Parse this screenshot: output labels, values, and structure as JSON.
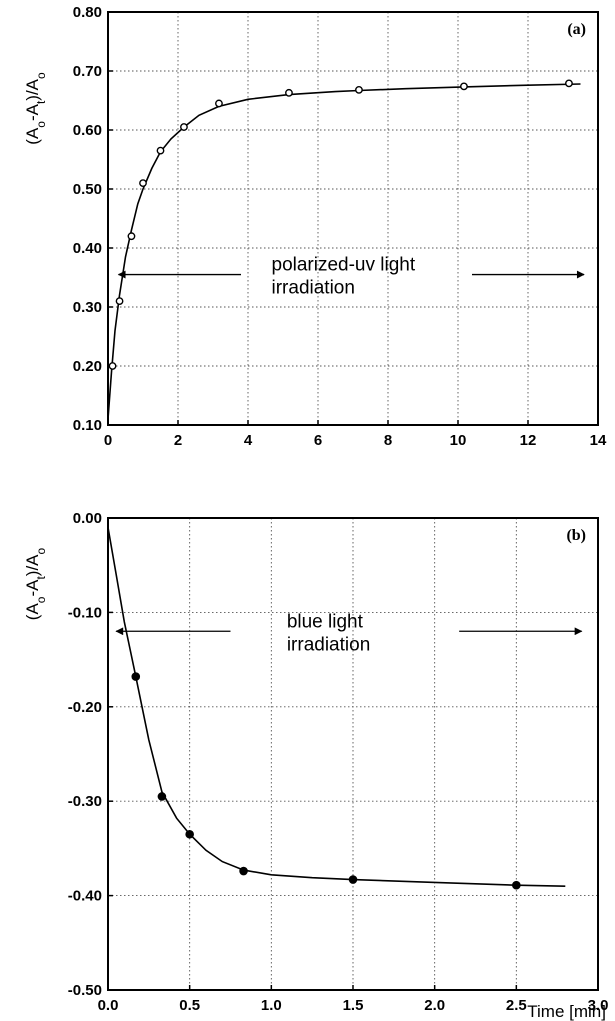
{
  "chart_data": [
    {
      "type": "scatter",
      "panel_label": "(a)",
      "ylabel": "(A0-At)/A0",
      "xlabel": "",
      "xlim": [
        0,
        14
      ],
      "ylim": [
        0.1,
        0.8
      ],
      "x_ticks": [
        "0",
        "2",
        "4",
        "6",
        "8",
        "10",
        "12",
        "14"
      ],
      "y_ticks": [
        "0.10",
        "0.20",
        "0.30",
        "0.40",
        "0.50",
        "0.60",
        "0.70",
        "0.80"
      ],
      "grid": true,
      "marker": "open-circle",
      "series": [
        {
          "x": [
            0.13,
            0.33,
            0.67,
            1.0,
            1.5,
            2.17,
            3.17,
            5.17,
            7.17,
            10.17,
            13.17
          ],
          "y": [
            0.2,
            0.31,
            0.42,
            0.51,
            0.565,
            0.605,
            0.645,
            0.663,
            0.668,
            0.674,
            0.679
          ]
        }
      ],
      "fit_curve": {
        "x": [
          0,
          0.1,
          0.2,
          0.33,
          0.5,
          0.67,
          0.85,
          1.0,
          1.25,
          1.5,
          1.8,
          2.17,
          2.6,
          3.17,
          4.0,
          5.17,
          6.5,
          7.17,
          8.5,
          10.17,
          12.0,
          13.5
        ],
        "y": [
          0.11,
          0.19,
          0.26,
          0.32,
          0.385,
          0.43,
          0.475,
          0.5,
          0.535,
          0.563,
          0.585,
          0.605,
          0.625,
          0.64,
          0.652,
          0.66,
          0.665,
          0.667,
          0.67,
          0.673,
          0.676,
          0.678
        ]
      },
      "annotation": {
        "line1": "polarized-uv light",
        "line2": "irradiation",
        "arrow_y": 0.355,
        "arrow_left_x": [
          3.8,
          0.3
        ],
        "arrow_right_x": [
          10.4,
          13.6
        ]
      }
    },
    {
      "type": "scatter",
      "panel_label": "(b)",
      "ylabel": "(A0-At)/A0",
      "xlabel": "Time [min]",
      "xlim": [
        0.0,
        3.0
      ],
      "ylim": [
        -0.5,
        0.0
      ],
      "x_ticks": [
        "0.0",
        "0.5",
        "1.0",
        "1.5",
        "2.0",
        "2.5",
        "3.0"
      ],
      "y_ticks": [
        "0.00",
        "-0.10",
        "-0.20",
        "-0.30",
        "-0.40",
        "-0.50"
      ],
      "grid": true,
      "marker": "filled-circle",
      "series": [
        {
          "x": [
            0.17,
            0.33,
            0.5,
            0.83,
            1.5,
            2.5
          ],
          "y": [
            -0.168,
            -0.295,
            -0.335,
            -0.374,
            -0.383,
            -0.389
          ]
        }
      ],
      "fit_curve": {
        "x": [
          0.0,
          0.05,
          0.1,
          0.17,
          0.25,
          0.33,
          0.42,
          0.5,
          0.6,
          0.7,
          0.83,
          1.0,
          1.25,
          1.5,
          2.0,
          2.5,
          2.8
        ],
        "y": [
          -0.01,
          -0.06,
          -0.11,
          -0.168,
          -0.235,
          -0.29,
          -0.318,
          -0.335,
          -0.352,
          -0.364,
          -0.373,
          -0.378,
          -0.381,
          -0.383,
          -0.386,
          -0.389,
          -0.39
        ]
      },
      "annotation": {
        "line1": "blue light",
        "line2": "irradiation",
        "arrow_y": -0.12,
        "arrow_left_x": [
          0.75,
          0.05
        ],
        "arrow_right_x": [
          2.15,
          2.9
        ]
      }
    }
  ]
}
